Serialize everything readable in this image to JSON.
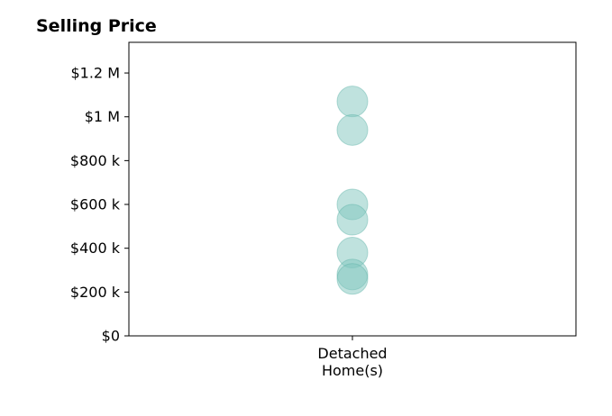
{
  "chart_data": {
    "type": "scatter",
    "title": "Selling Price",
    "categories": [
      "Detached\nHome(s)"
    ],
    "category_lines": [
      [
        "Detached",
        "Home(s)"
      ]
    ],
    "series": [
      {
        "category": "Detached\nHome(s)",
        "values": [
          1070000,
          940000,
          600000,
          530000,
          380000,
          280000,
          260000
        ]
      }
    ],
    "ylim": [
      0,
      1340000
    ],
    "yticks": [
      0,
      200000,
      400000,
      600000,
      800000,
      1000000,
      1200000
    ],
    "ytick_labels": [
      "$0",
      "$200 k",
      "$400 k",
      "$600 k",
      "$800 k",
      "$1 M",
      "$1.2 M"
    ],
    "grid": false,
    "legend": "none",
    "colors": {
      "marker_fill": "#80c6bd",
      "marker_stroke": "#5fb3a8",
      "axis": "#000000"
    }
  }
}
